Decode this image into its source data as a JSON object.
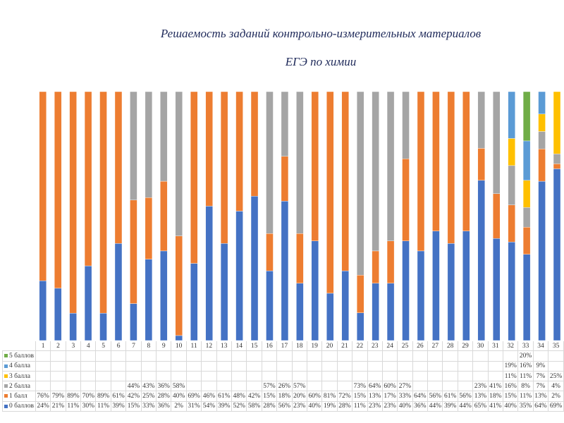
{
  "title_line1": "Решаемость заданий контрольно-измерительных материалов",
  "title_line2": "ЕГЭ по химии",
  "chart_data": {
    "type": "bar",
    "stacked": true,
    "percent": true,
    "title": "Решаемость заданий контрольно-измерительных материалов ЕГЭ по химии",
    "categories": [
      "1",
      "2",
      "3",
      "4",
      "5",
      "6",
      "7",
      "8",
      "9",
      "10",
      "11",
      "12",
      "13",
      "14",
      "15",
      "16",
      "17",
      "18",
      "19",
      "20",
      "21",
      "22",
      "23",
      "24",
      "25",
      "26",
      "27",
      "28",
      "29",
      "30",
      "31",
      "32",
      "33",
      "34",
      "35"
    ],
    "ylim": [
      0,
      100
    ],
    "grid": false,
    "legend": "data-table-bottom",
    "series": [
      {
        "name": "0 баллов",
        "color": "#4472C4",
        "values": [
          24,
          21,
          11,
          30,
          11,
          39,
          15,
          33,
          36,
          2,
          31,
          54,
          39,
          52,
          58,
          28,
          56,
          23,
          40,
          19,
          28,
          11,
          23,
          23,
          40,
          36,
          44,
          39,
          44,
          65,
          41,
          40,
          35,
          64,
          69
        ]
      },
      {
        "name": "1 балл",
        "color": "#ED7D31",
        "values": [
          76,
          79,
          89,
          70,
          89,
          61,
          42,
          25,
          28,
          40,
          69,
          46,
          61,
          48,
          42,
          15,
          18,
          20,
          60,
          81,
          72,
          15,
          13,
          17,
          33,
          64,
          56,
          61,
          56,
          13,
          18,
          15,
          11,
          13,
          2
        ]
      },
      {
        "name": "2 балла",
        "color": "#A5A5A5",
        "values": [
          null,
          null,
          null,
          null,
          null,
          null,
          44,
          43,
          36,
          58,
          null,
          null,
          null,
          null,
          null,
          57,
          26,
          57,
          null,
          null,
          null,
          73,
          64,
          60,
          27,
          null,
          null,
          null,
          null,
          23,
          41,
          16,
          8,
          7,
          4
        ]
      },
      {
        "name": "3 балла",
        "color": "#FFC000",
        "values": [
          null,
          null,
          null,
          null,
          null,
          null,
          null,
          null,
          null,
          null,
          null,
          null,
          null,
          null,
          null,
          null,
          null,
          null,
          null,
          null,
          null,
          null,
          null,
          null,
          null,
          null,
          null,
          null,
          null,
          null,
          null,
          11,
          11,
          7,
          25
        ]
      },
      {
        "name": "4 балла",
        "color": "#5B9BD5",
        "values": [
          null,
          null,
          null,
          null,
          null,
          null,
          null,
          null,
          null,
          null,
          null,
          null,
          null,
          null,
          null,
          null,
          null,
          null,
          null,
          null,
          null,
          null,
          null,
          null,
          null,
          null,
          null,
          null,
          null,
          null,
          null,
          19,
          16,
          9,
          null
        ]
      },
      {
        "name": "5 баллов",
        "color": "#70AD47",
        "values": [
          null,
          null,
          null,
          null,
          null,
          null,
          null,
          null,
          null,
          null,
          null,
          null,
          null,
          null,
          null,
          null,
          null,
          null,
          null,
          null,
          null,
          null,
          null,
          null,
          null,
          null,
          null,
          null,
          null,
          null,
          null,
          null,
          20,
          null,
          null
        ]
      }
    ]
  }
}
